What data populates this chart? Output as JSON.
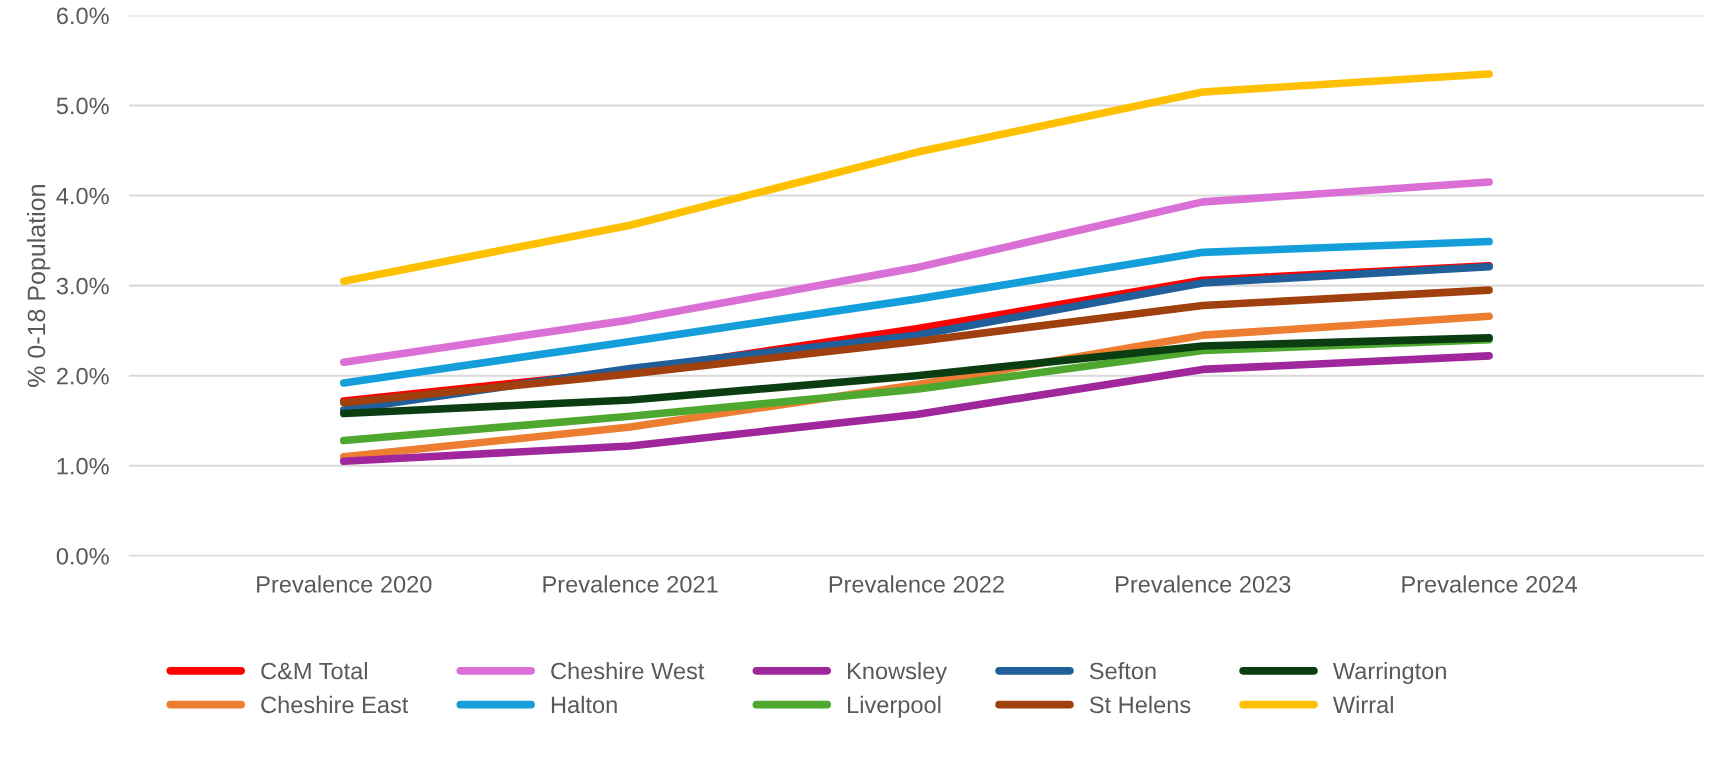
{
  "chart_data": {
    "type": "line",
    "ylabel": "% 0-18 Population",
    "categories": [
      "Prevalence 2020",
      "Prevalence 2021",
      "Prevalence 2022",
      "Prevalence 2023",
      "Prevalence 2024"
    ],
    "ylim": [
      0,
      6
    ],
    "yticks": [
      {
        "value": 0,
        "label": "0.0%"
      },
      {
        "value": 1,
        "label": "1.0%"
      },
      {
        "value": 2,
        "label": "2.0%"
      },
      {
        "value": 3,
        "label": "3.0%"
      },
      {
        "value": 4,
        "label": "4.0%"
      },
      {
        "value": 5,
        "label": "5.0%"
      },
      {
        "value": 6,
        "label": "6.0%"
      }
    ],
    "grid": "y",
    "legend": "bottom",
    "marker": "none",
    "line_style": "solid",
    "series": [
      {
        "name": "C&M Total",
        "color": "#ff0000",
        "values": [
          1.72,
          2.05,
          2.52,
          3.06,
          3.22
        ]
      },
      {
        "name": "Cheshire East",
        "color": "#ed7d31",
        "values": [
          1.1,
          1.43,
          1.9,
          2.45,
          2.66
        ]
      },
      {
        "name": "Cheshire West",
        "color": "#da70d6",
        "values": [
          2.15,
          2.62,
          3.2,
          3.93,
          4.15
        ]
      },
      {
        "name": "Halton",
        "color": "#149fdb",
        "values": [
          1.92,
          2.38,
          2.85,
          3.37,
          3.49
        ]
      },
      {
        "name": "Knowsley",
        "color": "#a0269c",
        "values": [
          1.05,
          1.22,
          1.57,
          2.07,
          2.22
        ]
      },
      {
        "name": "Liverpool",
        "color": "#4ea72e",
        "values": [
          1.28,
          1.55,
          1.85,
          2.28,
          2.4
        ]
      },
      {
        "name": "Sefton",
        "color": "#215f9a",
        "values": [
          1.62,
          2.08,
          2.45,
          3.03,
          3.21
        ]
      },
      {
        "name": "St Helens",
        "color": "#a0400e",
        "values": [
          1.7,
          2.02,
          2.38,
          2.78,
          2.95
        ]
      },
      {
        "name": "Warrington",
        "color": "#0b3d12",
        "values": [
          1.58,
          1.73,
          2.0,
          2.33,
          2.42
        ]
      },
      {
        "name": "Wirral",
        "color": "#ffc000",
        "values": [
          3.05,
          3.67,
          4.48,
          5.15,
          5.35
        ]
      }
    ]
  }
}
